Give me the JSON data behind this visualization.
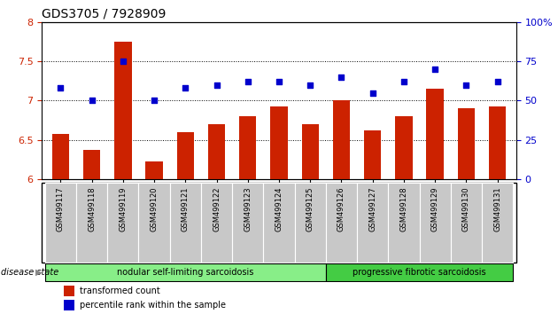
{
  "title": "GDS3705 / 7928909",
  "samples": [
    "GSM499117",
    "GSM499118",
    "GSM499119",
    "GSM499120",
    "GSM499121",
    "GSM499122",
    "GSM499123",
    "GSM499124",
    "GSM499125",
    "GSM499126",
    "GSM499127",
    "GSM499128",
    "GSM499129",
    "GSM499130",
    "GSM499131"
  ],
  "bar_values": [
    6.58,
    6.37,
    7.75,
    6.23,
    6.6,
    6.7,
    6.8,
    6.92,
    6.7,
    7.0,
    6.62,
    6.8,
    7.15,
    6.9,
    6.92
  ],
  "dot_values": [
    58,
    50,
    75,
    50,
    58,
    60,
    62,
    62,
    60,
    65,
    55,
    62,
    70,
    60,
    62
  ],
  "bar_color": "#cc2200",
  "dot_color": "#0000cc",
  "ylim_left": [
    6,
    8
  ],
  "ylim_right": [
    0,
    100
  ],
  "yticks_left": [
    6,
    6.5,
    7,
    7.5,
    8
  ],
  "ytick_labels_right": [
    "0",
    "25",
    "50",
    "75",
    "100%"
  ],
  "yticks_right": [
    0,
    25,
    50,
    75,
    100
  ],
  "group1_label": "nodular self-limiting sarcoidosis",
  "group2_label": "progressive fibrotic sarcoidosis",
  "group1_count": 9,
  "group2_count": 6,
  "disease_state_label": "disease state",
  "legend_bar_label": "transformed count",
  "legend_dot_label": "percentile rank within the sample",
  "group1_color": "#88ee88",
  "group2_color": "#44cc44",
  "tick_label_bg": "#c8c8c8",
  "fig_width": 6.3,
  "fig_height": 3.54,
  "dpi": 100
}
